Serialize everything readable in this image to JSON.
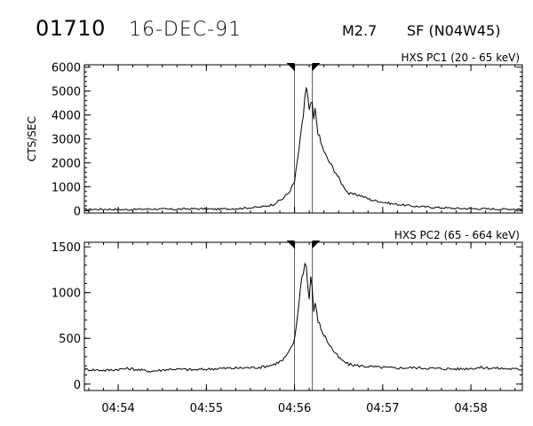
{
  "header": {
    "event_id": "01710",
    "date": "16-DEC-91",
    "goes_class": "M2.7",
    "optical_class": "SF (N04W45)"
  },
  "colors": {
    "foreground": "#000000",
    "background": "#ffffff"
  },
  "chart_data": [
    {
      "type": "line",
      "panel_label": "HXS PC1 (20 - 65 keV)",
      "ylabel": "CTS/SEC",
      "xlabel": "",
      "xlim": [
        "04:53:37",
        "04:58:35"
      ],
      "ylim": [
        -100,
        6100
      ],
      "y_ticks": [
        "0",
        "1000",
        "2000",
        "3000",
        "4000",
        "5000",
        "6000"
      ],
      "x_ticks": [
        "04:54",
        "04:55",
        "04:56",
        "04:57",
        "04:58"
      ],
      "interval_markers": [
        "04:56:00",
        "04:56:12"
      ],
      "series": [
        {
          "x": [
            "04:53:37",
            "04:53:52",
            "04:54:07",
            "04:54:22",
            "04:54:37",
            "04:54:52",
            "04:55:07",
            "04:55:22",
            "04:55:37",
            "04:55:45",
            "04:55:52",
            "04:55:56",
            "04:56:00",
            "04:56:02",
            "04:56:04",
            "04:56:06",
            "04:56:07",
            "04:56:08",
            "04:56:09",
            "04:56:10",
            "04:56:11",
            "04:56:12",
            "04:56:13",
            "04:56:14",
            "04:56:16",
            "04:56:18",
            "04:56:20",
            "04:56:22",
            "04:56:25",
            "04:56:28",
            "04:56:30",
            "04:56:33",
            "04:56:37",
            "04:56:44",
            "04:56:52",
            "04:57:07",
            "04:57:22",
            "04:57:37",
            "04:57:52",
            "04:58:07",
            "04:58:22",
            "04:58:35"
          ],
          "values": [
            50,
            60,
            40,
            70,
            55,
            80,
            60,
            90,
            150,
            250,
            500,
            750,
            1200,
            2100,
            3000,
            4000,
            4800,
            5100,
            4700,
            4100,
            4500,
            4400,
            3800,
            4200,
            3300,
            2800,
            2500,
            2200,
            1900,
            1600,
            1350,
            1050,
            700,
            650,
            450,
            280,
            180,
            130,
            90,
            80,
            60,
            70
          ]
        }
      ]
    },
    {
      "type": "line",
      "panel_label": "HXS PC2 (65 - 664 keV)",
      "ylabel": "",
      "xlabel": "",
      "xlim": [
        "04:53:37",
        "04:58:35"
      ],
      "ylim": [
        -70,
        1550
      ],
      "y_ticks": [
        "0",
        "500",
        "1000",
        "1500"
      ],
      "x_ticks": [
        "04:54",
        "04:55",
        "04:56",
        "04:57",
        "04:58"
      ],
      "interval_markers": [
        "04:56:00",
        "04:56:12"
      ],
      "series": [
        {
          "x": [
            "04:53:37",
            "04:53:52",
            "04:54:07",
            "04:54:22",
            "04:54:37",
            "04:54:52",
            "04:55:07",
            "04:55:22",
            "04:55:37",
            "04:55:45",
            "04:55:52",
            "04:55:56",
            "04:56:00",
            "04:56:02",
            "04:56:04",
            "04:56:06",
            "04:56:07",
            "04:56:08",
            "04:56:09",
            "04:56:10",
            "04:56:11",
            "04:56:12",
            "04:56:13",
            "04:56:14",
            "04:56:16",
            "04:56:18",
            "04:56:20",
            "04:56:22",
            "04:56:25",
            "04:56:28",
            "04:56:30",
            "04:56:33",
            "04:56:37",
            "04:56:44",
            "04:56:52",
            "04:57:07",
            "04:57:22",
            "04:57:37",
            "04:57:52",
            "04:58:07",
            "04:58:22",
            "04:58:35"
          ],
          "values": [
            160,
            150,
            170,
            140,
            165,
            155,
            170,
            175,
            185,
            210,
            260,
            340,
            480,
            750,
            1050,
            1250,
            1320,
            1280,
            1100,
            920,
            1180,
            1060,
            800,
            870,
            700,
            600,
            540,
            480,
            400,
            330,
            290,
            250,
            215,
            200,
            190,
            175,
            180,
            170,
            165,
            180,
            170,
            160
          ]
        }
      ]
    }
  ]
}
